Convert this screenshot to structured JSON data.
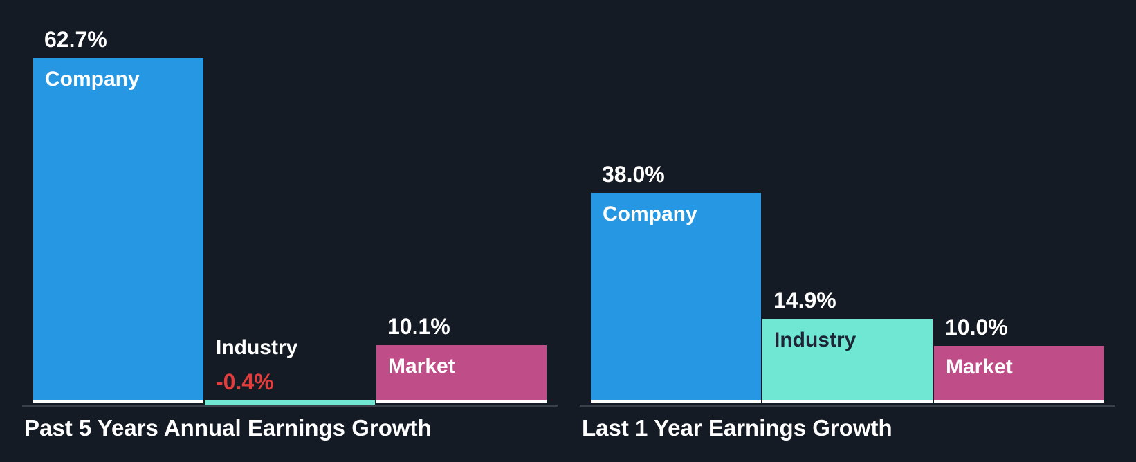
{
  "canvas": {
    "background": "#151b24"
  },
  "colors": {
    "company_bar": "#2697e2",
    "industry_bar": "#6fe7d3",
    "market_bar": "#bf4e88",
    "negative_value_text": "#e23c3c",
    "axis_line": "#3a414b",
    "bar_baseline": "#ffffff",
    "label_on_dark": "#ffffff",
    "label_on_teal": "#1d2634"
  },
  "chart_data": [
    {
      "type": "bar",
      "title": "Past 5 Years Annual Earnings Growth",
      "categories": [
        "Company",
        "Industry",
        "Market"
      ],
      "values": [
        62.7,
        -0.4,
        10.1
      ],
      "value_labels": [
        "62.7%",
        "-0.4%",
        "10.1%"
      ],
      "unit": "%",
      "ylim": [
        -1,
        65
      ],
      "grid": false,
      "legend": "none",
      "bar_colors": [
        "#2697e2",
        "#6fe7d3",
        "#bf4e88"
      ],
      "category_label_colors": [
        "#ffffff",
        "#ffffff",
        "#ffffff"
      ],
      "value_label_colors": [
        "#ffffff",
        "#e23c3c",
        "#ffffff"
      ]
    },
    {
      "type": "bar",
      "title": "Last 1 Year Earnings Growth",
      "categories": [
        "Company",
        "Industry",
        "Market"
      ],
      "values": [
        38.0,
        14.9,
        10.0
      ],
      "value_labels": [
        "38.0%",
        "14.9%",
        "10.0%"
      ],
      "unit": "%",
      "ylim": [
        0,
        65
      ],
      "grid": false,
      "legend": "none",
      "bar_colors": [
        "#2697e2",
        "#6fe7d3",
        "#bf4e88"
      ],
      "category_label_colors": [
        "#ffffff",
        "#1d2634",
        "#ffffff"
      ],
      "value_label_colors": [
        "#ffffff",
        "#ffffff",
        "#ffffff"
      ]
    }
  ]
}
